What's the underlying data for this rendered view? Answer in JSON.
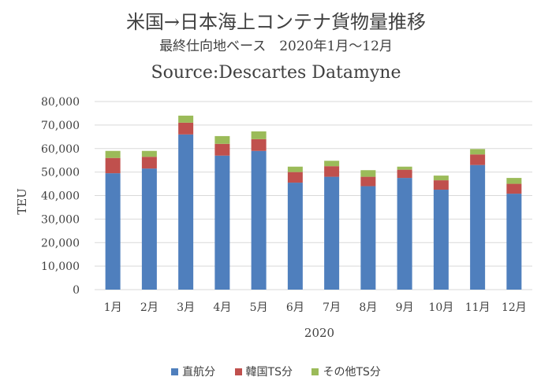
{
  "title": "米国→日本海上コンテナ貨物量推移",
  "subtitle": "最終仕向地ベース　2020年1月～12月",
  "source": "Source:Descartes Datamyne",
  "colors": {
    "direct": "#4f7fbd",
    "korea_ts": "#c0504d",
    "other_ts": "#9bbb59",
    "grid": "#d9d9d9",
    "text": "#404040"
  },
  "chart_data": {
    "type": "bar",
    "stacked": true,
    "categories": [
      "1月",
      "2月",
      "3月",
      "4月",
      "5月",
      "6月",
      "7月",
      "8月",
      "9月",
      "10月",
      "11月",
      "12月"
    ],
    "series": [
      {
        "name": "直航分",
        "color": "#4f7fbd",
        "values": [
          49500,
          51500,
          66000,
          57000,
          59000,
          45500,
          48000,
          44000,
          47500,
          42500,
          53000,
          40800
        ]
      },
      {
        "name": "韓国TS分",
        "color": "#c0504d",
        "values": [
          6500,
          5000,
          5000,
          5000,
          5000,
          4500,
          4500,
          4000,
          3500,
          4000,
          4500,
          4200
        ]
      },
      {
        "name": "その他TS分",
        "color": "#9bbb59",
        "values": [
          3000,
          2500,
          3000,
          3300,
          3300,
          2300,
          2300,
          2800,
          1300,
          2000,
          2300,
          2500
        ]
      }
    ],
    "xlabel": "2020",
    "ylabel": "TEU",
    "ylim": [
      0,
      80000
    ],
    "yticks": [
      "0",
      "10,000",
      "20,000",
      "30,000",
      "40,000",
      "50,000",
      "60,000",
      "70,000",
      "80,000"
    ],
    "grid": true,
    "legend": "bottom"
  }
}
